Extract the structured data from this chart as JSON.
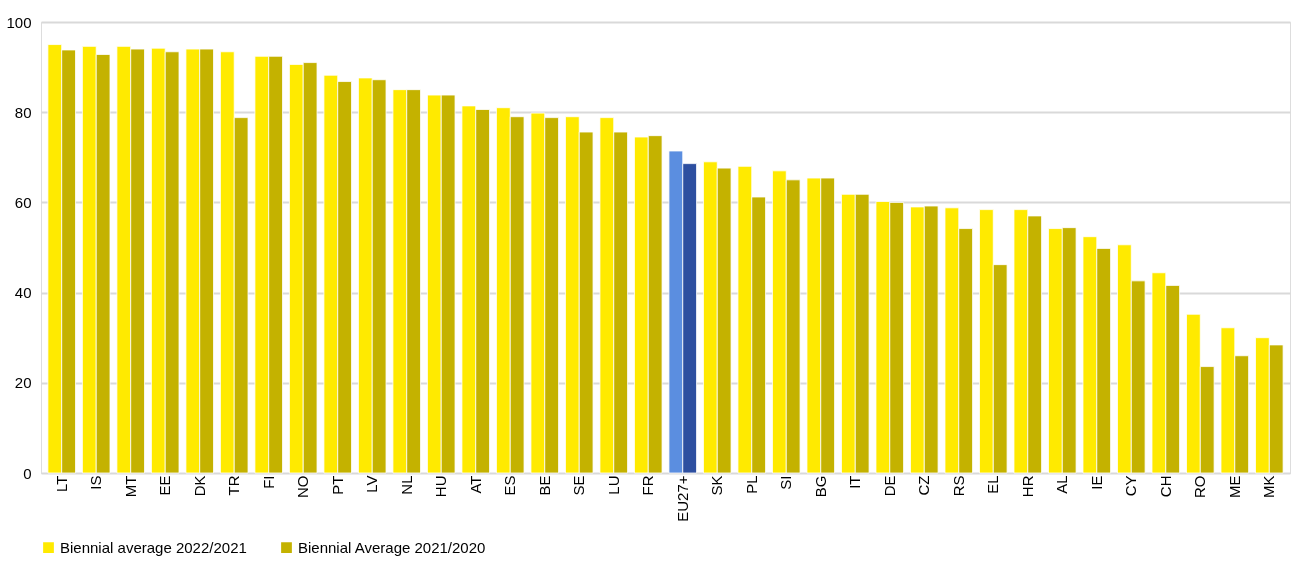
{
  "chart_data": {
    "type": "bar",
    "categories": [
      "LT",
      "IS",
      "MT",
      "EE",
      "DK",
      "TR",
      "FI",
      "NO",
      "PT",
      "LV",
      "NL",
      "HU",
      "AT",
      "ES",
      "BE",
      "SE",
      "LU",
      "FR",
      "EU27+",
      "SK",
      "PL",
      "SI",
      "BG",
      "IT",
      "DE",
      "CZ",
      "RS",
      "EL",
      "HR",
      "AL",
      "IE",
      "CY",
      "CH",
      "RO",
      "ME",
      "MK"
    ],
    "series": [
      {
        "name": "Biennial average 2022/2021",
        "color": "#ffea00",
        "colors": [
          "#ffea00",
          "#ffea00",
          "#ffea00",
          "#ffea00",
          "#ffea00",
          "#ffea00",
          "#ffea00",
          "#ffea00",
          "#ffea00",
          "#ffea00",
          "#ffea00",
          "#ffea00",
          "#ffea00",
          "#ffea00",
          "#ffea00",
          "#ffea00",
          "#ffea00",
          "#ffea00",
          "#5b8ee0",
          "#ffea00",
          "#ffea00",
          "#ffea00",
          "#ffea00",
          "#ffea00",
          "#ffea00",
          "#ffea00",
          "#ffea00",
          "#ffea00",
          "#ffea00",
          "#ffea00",
          "#ffea00",
          "#ffea00",
          "#ffea00",
          "#ffea00",
          "#ffea00",
          "#ffea00"
        ],
        "values": [
          95,
          94.6,
          94.6,
          94.2,
          94,
          93.4,
          92.4,
          90.6,
          88.2,
          87.6,
          85,
          83.8,
          81.4,
          81,
          79.8,
          79,
          78.8,
          74.5,
          71.4,
          69,
          68,
          67,
          65.4,
          61.8,
          60.2,
          59,
          58.8,
          58.4,
          58.4,
          54.2,
          52.4,
          50.6,
          44.4,
          35.2,
          32.2,
          30
        ]
      },
      {
        "name": "Biennial Average 2021/2020",
        "color": "#c4b200",
        "colors": [
          "#c4b200",
          "#c4b200",
          "#c4b200",
          "#c4b200",
          "#c4b200",
          "#c4b200",
          "#c4b200",
          "#c4b200",
          "#c4b200",
          "#c4b200",
          "#c4b200",
          "#c4b200",
          "#c4b200",
          "#c4b200",
          "#c4b200",
          "#c4b200",
          "#c4b200",
          "#c4b200",
          "#2d4fa0",
          "#c4b200",
          "#c4b200",
          "#c4b200",
          "#c4b200",
          "#c4b200",
          "#c4b200",
          "#c4b200",
          "#c4b200",
          "#c4b200",
          "#c4b200",
          "#c4b200",
          "#c4b200",
          "#c4b200",
          "#c4b200",
          "#c4b200",
          "#c4b200",
          "#c4b200"
        ],
        "values": [
          93.8,
          92.8,
          94,
          93.4,
          94,
          78.8,
          92.4,
          91,
          86.8,
          87.2,
          85,
          83.8,
          80.6,
          79,
          78.8,
          75.6,
          75.6,
          74.8,
          68.6,
          67.6,
          61.2,
          65,
          65.4,
          61.8,
          60,
          59.2,
          54.2,
          46.2,
          57,
          54.4,
          49.8,
          42.6,
          41.6,
          23.6,
          26,
          28.4
        ]
      }
    ],
    "ylim": [
      0,
      100
    ],
    "yticks": [
      0,
      20,
      40,
      60,
      80,
      100
    ],
    "grid": "y",
    "legend": "bottom"
  }
}
